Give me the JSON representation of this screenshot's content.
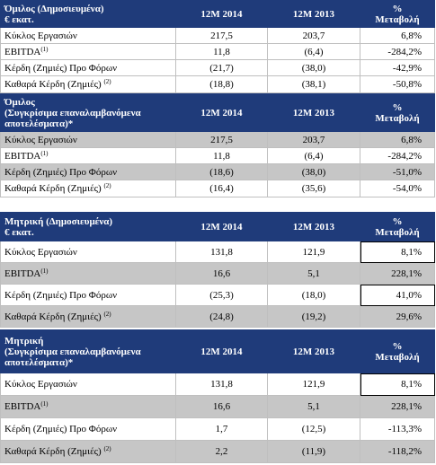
{
  "sections": [
    {
      "title_lines": [
        "Όμιλος  (Δημοσιευμένα)",
        "€ εκατ."
      ],
      "col_2014": "12Μ  2014",
      "col_2013": "12Μ  2013",
      "col_change_lines": [
        "%",
        "Μεταβολή"
      ],
      "rows": [
        {
          "label": "Κύκλος Εργασιών",
          "note": "",
          "v2014": "217,5",
          "v2013": "203,7",
          "change": "6,8%"
        },
        {
          "label": "EBITDA",
          "note": "(1)",
          "v2014": "11,8",
          "v2013": "(6,4)",
          "change": "-284,2%"
        },
        {
          "label": "Κέρδη (Ζημιές) Προ Φόρων",
          "note": "",
          "v2014": "(21,7)",
          "v2013": "(38,0)",
          "change": "-42,9%"
        },
        {
          "label": "Καθαρά Κέρδη (Ζημιές)",
          "note": "(2)",
          "v2014": "(18,8)",
          "v2013": "(38,1)",
          "change": "-50,8%"
        }
      ]
    },
    {
      "title_lines": [
        "Όμιλος",
        "(Συγκρίσιμα επαναλαμβανόμενα",
        "αποτελέσματα)*"
      ],
      "col_2014": "12Μ  2014",
      "col_2013": "12Μ  2013",
      "col_change_lines": [
        "%",
        "Μεταβολή"
      ],
      "rows": [
        {
          "label": "Κύκλος Εργασιών",
          "note": "",
          "v2014": "217,5",
          "v2013": "203,7",
          "change": "6,8%"
        },
        {
          "label": "EBITDA",
          "note": "(1)",
          "v2014": "11,8",
          "v2013": "(6,4)",
          "change": "-284,2%"
        },
        {
          "label": "Κέρδη (Ζημιές) Προ Φόρων",
          "note": "",
          "v2014": "(18,6)",
          "v2013": "(38,0)",
          "change": "-51,0%"
        },
        {
          "label": "Καθαρά Κέρδη (Ζημιές)",
          "note": "(2)",
          "v2014": "(16,4)",
          "v2013": "(35,6)",
          "change": "-54,0%"
        }
      ]
    },
    {
      "title_lines": [
        "Μητρική  (Δημοσιευμένα)",
        "€ εκατ."
      ],
      "col_2014": "12Μ  2014",
      "col_2013": "12Μ  2013",
      "col_change_lines": [
        "%",
        "Μεταβολή"
      ],
      "rows": [
        {
          "label": "Κύκλος Εργασιών",
          "note": "",
          "v2014": "131,8",
          "v2013": "121,9",
          "change": "8,1%"
        },
        {
          "label": "EBITDA",
          "note": "(1)",
          "v2014": "16,6",
          "v2013": "5,1",
          "change": "228,1%"
        },
        {
          "label": "Κέρδη (Ζημιές) Προ Φόρων",
          "note": "",
          "v2014": "(25,3)",
          "v2013": "(18,0)",
          "change": "41,0%"
        },
        {
          "label": "Καθαρά Κέρδη (Ζημιές)",
          "note": "(2)",
          "v2014": "(24,8)",
          "v2013": "(19,2)",
          "change": "29,6%"
        }
      ]
    },
    {
      "title_lines": [
        "Μητρική",
        "(Συγκρίσιμα επαναλαμβανόμενα",
        "αποτελέσματα)*"
      ],
      "col_2014": "12Μ  2014",
      "col_2013": "12Μ  2013",
      "col_change_lines": [
        "%",
        "Μεταβολή"
      ],
      "rows": [
        {
          "label": "Κύκλος Εργασιών",
          "note": "",
          "v2014": "131,8",
          "v2013": "121,9",
          "change": "8,1%"
        },
        {
          "label": "EBITDA",
          "note": "(1)",
          "v2014": "16,6",
          "v2013": "5,1",
          "change": "228,1%"
        },
        {
          "label": "Κέρδη (Ζημιές) Προ Φόρων",
          "note": "",
          "v2014": "1,7",
          "v2013": "(12,5)",
          "change": "-113,3%"
        },
        {
          "label": "Καθαρά Κέρδη (Ζημιές)",
          "note": "(2)",
          "v2014": "2,2",
          "v2013": "(11,9)",
          "change": "-118,2%"
        }
      ]
    }
  ]
}
